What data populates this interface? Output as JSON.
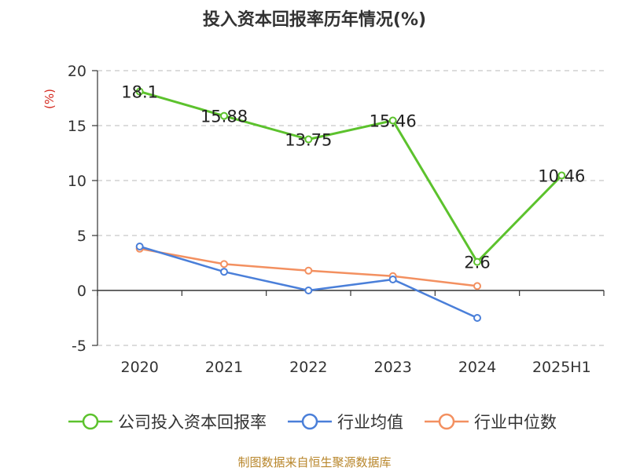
{
  "chart_data": {
    "type": "line",
    "title": "投入资本回报率历年情况(%)",
    "ylabel": "(%)",
    "categories": [
      "2020",
      "2021",
      "2022",
      "2023",
      "2024",
      "2025H1"
    ],
    "ylim": [
      -5,
      20
    ],
    "yticks": [
      -5,
      0,
      5,
      10,
      15,
      20
    ],
    "grid": "horizontal-dashed",
    "legend_position": "bottom",
    "series": [
      {
        "name": "公司投入资本回报率",
        "color": "#5cc22d",
        "values": [
          18.1,
          15.88,
          13.75,
          15.46,
          2.6,
          10.46
        ],
        "labels": [
          "18.1",
          "15.88",
          "13.75",
          "15.46",
          "2.6",
          "10.46"
        ]
      },
      {
        "name": "行业均值",
        "color": "#4a7fd9",
        "values": [
          4.0,
          1.7,
          0.0,
          1.0,
          -2.5,
          null
        ]
      },
      {
        "name": "行业中位数",
        "color": "#f39060",
        "values": [
          3.8,
          2.4,
          1.8,
          1.3,
          0.4,
          null
        ]
      }
    ]
  },
  "source": "制图数据来自恒生聚源数据库"
}
